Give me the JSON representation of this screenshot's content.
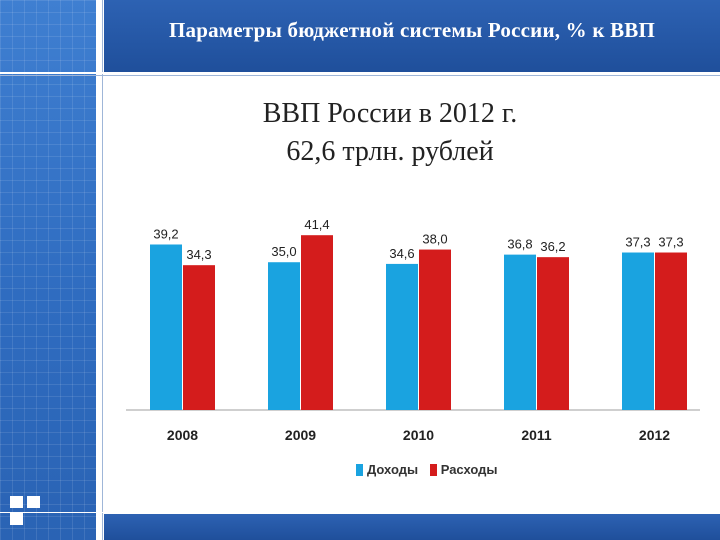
{
  "header": {
    "title": "Параметры бюджетной системы России, % к ВВП"
  },
  "subtitle": {
    "line1": "ВВП России в 2012 г.",
    "line2": "62,6 трлн. рублей"
  },
  "colors": {
    "income": "#1aa3e0",
    "expense": "#d41c1c",
    "header_blue": "#2356a8"
  },
  "chart_data": {
    "type": "bar",
    "categories": [
      "2008",
      "2009",
      "2010",
      "2011",
      "2012"
    ],
    "series": [
      {
        "name": "Доходы",
        "values": [
          39.2,
          35.0,
          34.6,
          36.8,
          37.3
        ],
        "labels": [
          "39,2",
          "35,0",
          "34,6",
          "36,8",
          "37,3"
        ]
      },
      {
        "name": "Расходы",
        "values": [
          34.3,
          41.4,
          38.0,
          36.2,
          37.3
        ],
        "labels": [
          "34,3",
          "41,4",
          "38,0",
          "36,2",
          "37,3"
        ]
      }
    ],
    "ylim": [
      0,
      45
    ],
    "grid": false,
    "legend_position": "bottom"
  }
}
